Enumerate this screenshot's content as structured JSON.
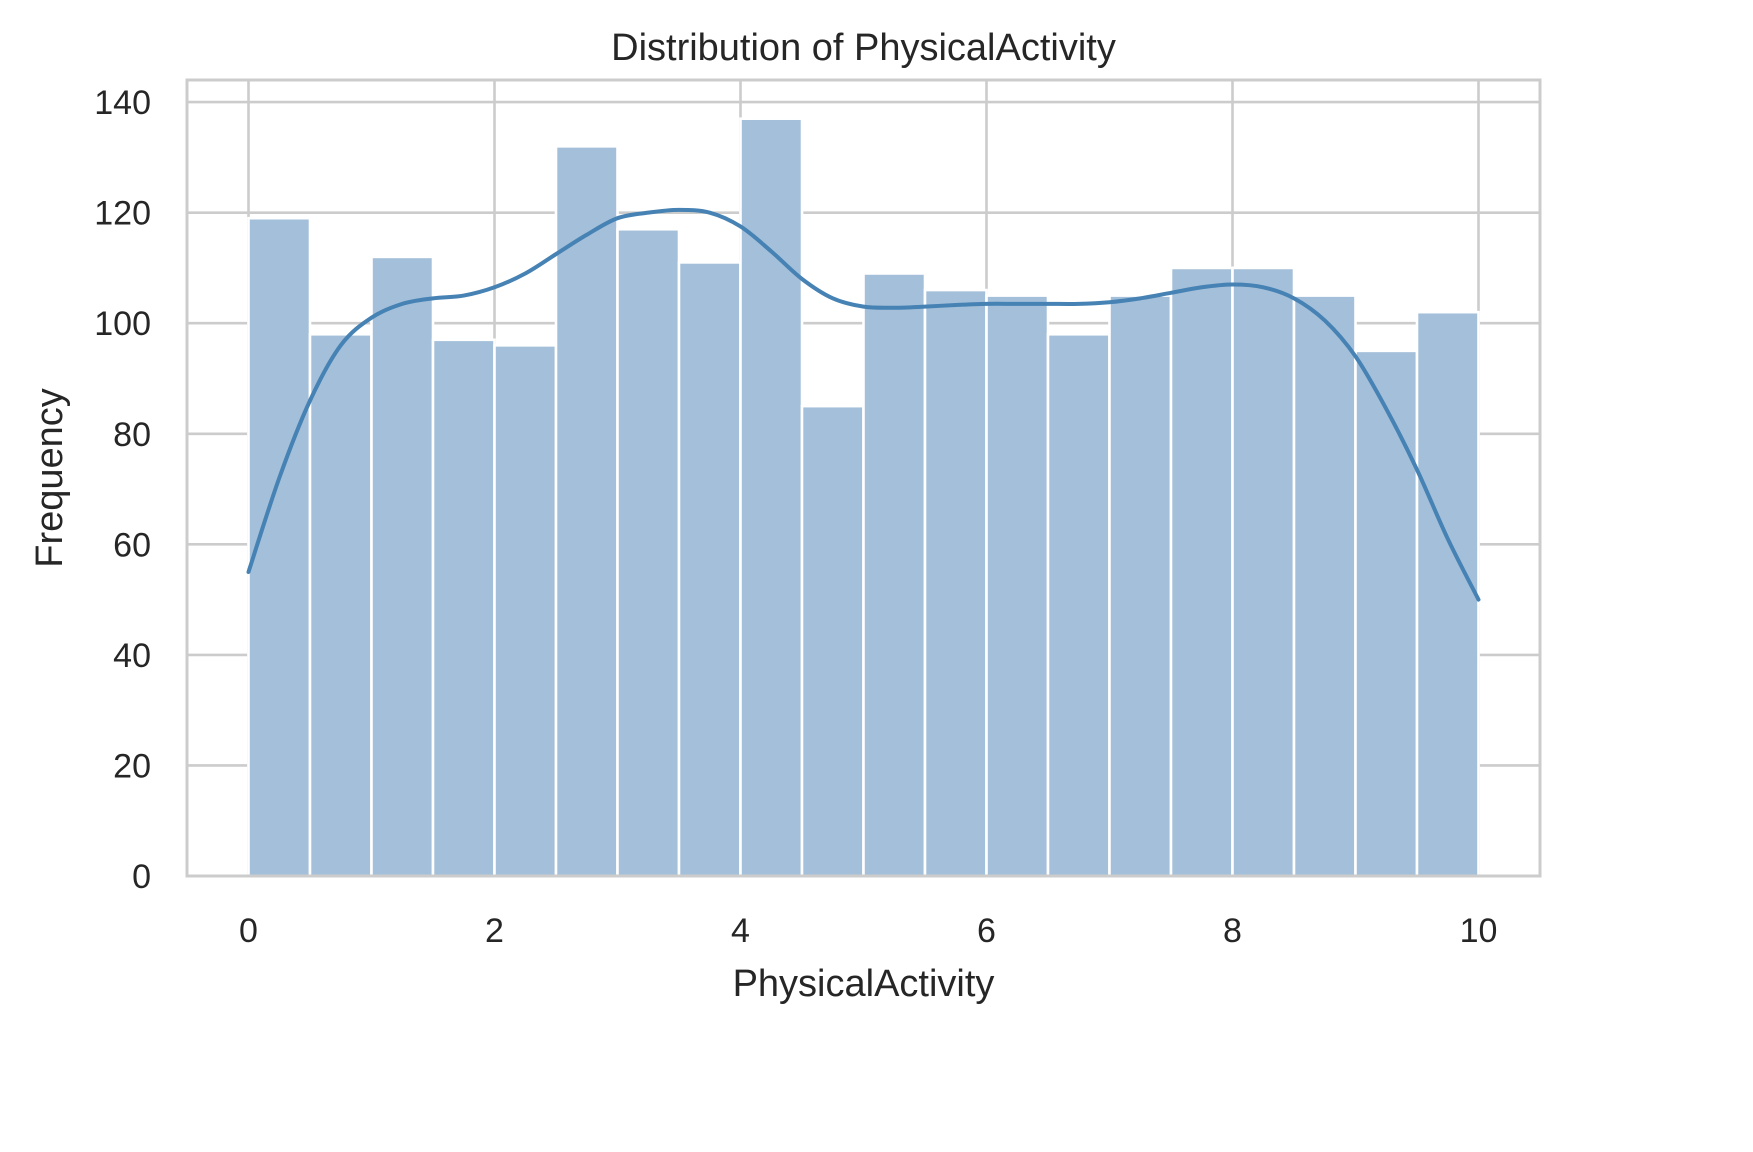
{
  "chart_data": {
    "type": "bar",
    "subtype": "histogram-with-kde",
    "title": "Distribution of PhysicalActivity",
    "xlabel": "PhysicalActivity",
    "ylabel": "Frequency",
    "xlim": [
      -0.5,
      10.5
    ],
    "ylim": [
      0,
      144
    ],
    "xticks": [
      0,
      2,
      4,
      6,
      8,
      10
    ],
    "yticks": [
      0,
      20,
      40,
      60,
      80,
      100,
      120,
      140
    ],
    "grid": true,
    "bin_edges": [
      0,
      0.5,
      1,
      1.5,
      2,
      2.5,
      3,
      3.5,
      4,
      4.5,
      5,
      5.5,
      6,
      6.5,
      7,
      7.5,
      8,
      8.5,
      9,
      9.5,
      10
    ],
    "values": [
      119,
      98,
      112,
      97,
      96,
      132,
      117,
      111,
      137,
      85,
      109,
      106,
      105,
      98,
      105,
      110,
      110,
      105,
      95,
      102
    ],
    "kde": {
      "x": [
        0,
        0.25,
        0.5,
        0.75,
        1,
        1.25,
        1.5,
        1.75,
        2,
        2.25,
        2.5,
        2.75,
        3,
        3.25,
        3.5,
        3.75,
        4,
        4.25,
        4.5,
        4.75,
        5,
        5.25,
        5.5,
        5.75,
        6,
        6.25,
        6.5,
        6.75,
        7,
        7.25,
        7.5,
        7.75,
        8,
        8.25,
        8.5,
        8.75,
        9,
        9.25,
        9.5,
        9.75,
        10
      ],
      "y": [
        55,
        72,
        86,
        96,
        101,
        103.5,
        104.5,
        105,
        106.5,
        109,
        112.5,
        116,
        119,
        120,
        120.5,
        120,
        117.5,
        113,
        108,
        104.5,
        103,
        102.8,
        103,
        103.3,
        103.5,
        103.5,
        103.5,
        103.5,
        103.8,
        104.5,
        105.5,
        106.5,
        107,
        106.5,
        104.5,
        100.5,
        94,
        84.5,
        73.5,
        61,
        50
      ]
    },
    "colors": {
      "bar_fill": "#a3bfd9",
      "kde_line": "#4682b4",
      "grid": "#cccccc",
      "text": "#262626"
    }
  }
}
